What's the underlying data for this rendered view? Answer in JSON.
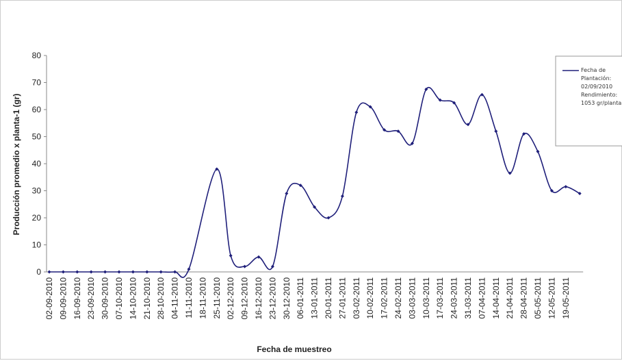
{
  "chart_data": {
    "type": "line",
    "y_label": "Producción promedio x planta-1 (gr)",
    "x_label": "Fecha de muestreo",
    "categories": [
      "02-09-2010",
      "09-09-2010",
      "16-09-2010",
      "23-09-2010",
      "30-09-2010",
      "07-10-2010",
      "14-10-2010",
      "21-10-2010",
      "28-10-2010",
      "04-11-2010",
      "11-11-2010",
      "18-11-2010",
      "25-11-2010",
      "02-12-2010",
      "09-12-2010",
      "16-12-2010",
      "23-12-2010",
      "30-12-2010",
      "06-01-2011",
      "13-01-2011",
      "20-01-2011",
      "27-01-2011",
      "03-02-2011",
      "10-02-2011",
      "17-02-2011",
      "24-02-2011",
      "03-03-2011",
      "10-03-2011",
      "17-03-2011",
      "24-03-2011",
      "31-03-2011",
      "07-04-2011",
      "14-04-2011",
      "21-04-2011",
      "28-04-2011",
      "05-05-2011",
      "12-05-2011",
      "19-05-2011",
      null
    ],
    "series": [
      {
        "name": "Fecha de Plantación: 02/09/2010 Rendimiento: 1053 gr/planta",
        "color": "#1f1f7a",
        "values": [
          0,
          0,
          0,
          0,
          0,
          0,
          0,
          0,
          0,
          0,
          1,
          null,
          38,
          6,
          2,
          5.5,
          2,
          29,
          32,
          24,
          20,
          28,
          59,
          61,
          52.5,
          52,
          47.5,
          67.5,
          63.5,
          62.5,
          54.5,
          65.5,
          52,
          36.5,
          51,
          44.5,
          30,
          31.5,
          29
        ]
      }
    ],
    "ylim": [
      0,
      80
    ],
    "yticks": [
      0,
      10,
      20,
      30,
      40,
      50,
      60,
      70,
      80
    ],
    "grid": false,
    "legend": "right"
  }
}
